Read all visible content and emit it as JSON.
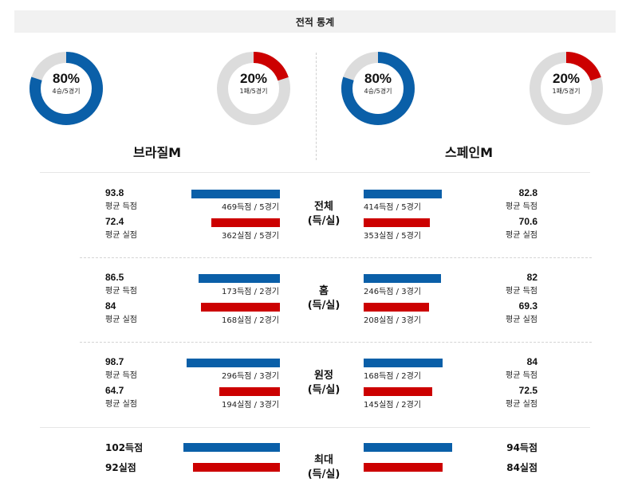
{
  "header": {
    "title": "전적 통계"
  },
  "colors": {
    "win": "#0a5fa8",
    "loss": "#cc0000",
    "ring": "#dcdcdc"
  },
  "teams": {
    "home": {
      "name": "브라질M",
      "win_ring": {
        "pct": "80%",
        "sub": "4승/5경기",
        "fraction": 0.8
      },
      "loss_ring": {
        "pct": "20%",
        "sub": "1패/5경기",
        "fraction": 0.2
      }
    },
    "away": {
      "name": "스페인M",
      "win_ring": {
        "pct": "80%",
        "sub": "4승/5경기",
        "fraction": 0.8
      },
      "loss_ring": {
        "pct": "20%",
        "sub": "1패/5경기",
        "fraction": 0.2
      }
    }
  },
  "sections": [
    {
      "category": [
        "전체",
        "(득/실)"
      ],
      "home": {
        "scored": {
          "value": "93.8",
          "label": "평균 득점",
          "bar_text": "469득점 / 5경기",
          "bar_value": 93.8
        },
        "conceded": {
          "value": "72.4",
          "label": "평균 실점",
          "bar_text": "362실점 / 5경기",
          "bar_value": 72.4
        }
      },
      "away": {
        "scored": {
          "value": "82.8",
          "label": "평균 득점",
          "bar_text": "414득점 / 5경기",
          "bar_value": 82.8
        },
        "conceded": {
          "value": "70.6",
          "label": "평균 실점",
          "bar_text": "353실점 / 5경기",
          "bar_value": 70.6
        }
      }
    },
    {
      "category": [
        "홈",
        "(득/실)"
      ],
      "home": {
        "scored": {
          "value": "86.5",
          "label": "평균 득점",
          "bar_text": "173득점 / 2경기",
          "bar_value": 86.5
        },
        "conceded": {
          "value": "84",
          "label": "평균 실점",
          "bar_text": "168실점 / 2경기",
          "bar_value": 84
        }
      },
      "away": {
        "scored": {
          "value": "82",
          "label": "평균 득점",
          "bar_text": "246득점 / 3경기",
          "bar_value": 82
        },
        "conceded": {
          "value": "69.3",
          "label": "평균 실점",
          "bar_text": "208실점 / 3경기",
          "bar_value": 69.3
        }
      }
    },
    {
      "category": [
        "원정",
        "(득/실)"
      ],
      "home": {
        "scored": {
          "value": "98.7",
          "label": "평균 득점",
          "bar_text": "296득점 / 3경기",
          "bar_value": 98.7
        },
        "conceded": {
          "value": "64.7",
          "label": "평균 실점",
          "bar_text": "194실점 / 3경기",
          "bar_value": 64.7
        }
      },
      "away": {
        "scored": {
          "value": "84",
          "label": "평균 득점",
          "bar_text": "168득점 / 2경기",
          "bar_value": 84
        },
        "conceded": {
          "value": "72.5",
          "label": "평균 실점",
          "bar_text": "145실점 / 2경기",
          "bar_value": 72.5
        }
      }
    },
    {
      "category": [
        "최대",
        "(득/실)"
      ],
      "home": {
        "scored": {
          "value": "102득점",
          "bar_value": 102
        },
        "conceded": {
          "value": "92실점",
          "bar_value": 92
        }
      },
      "away": {
        "scored": {
          "value": "94득점",
          "bar_value": 94
        },
        "conceded": {
          "value": "84실점",
          "bar_value": 84
        }
      }
    }
  ]
}
